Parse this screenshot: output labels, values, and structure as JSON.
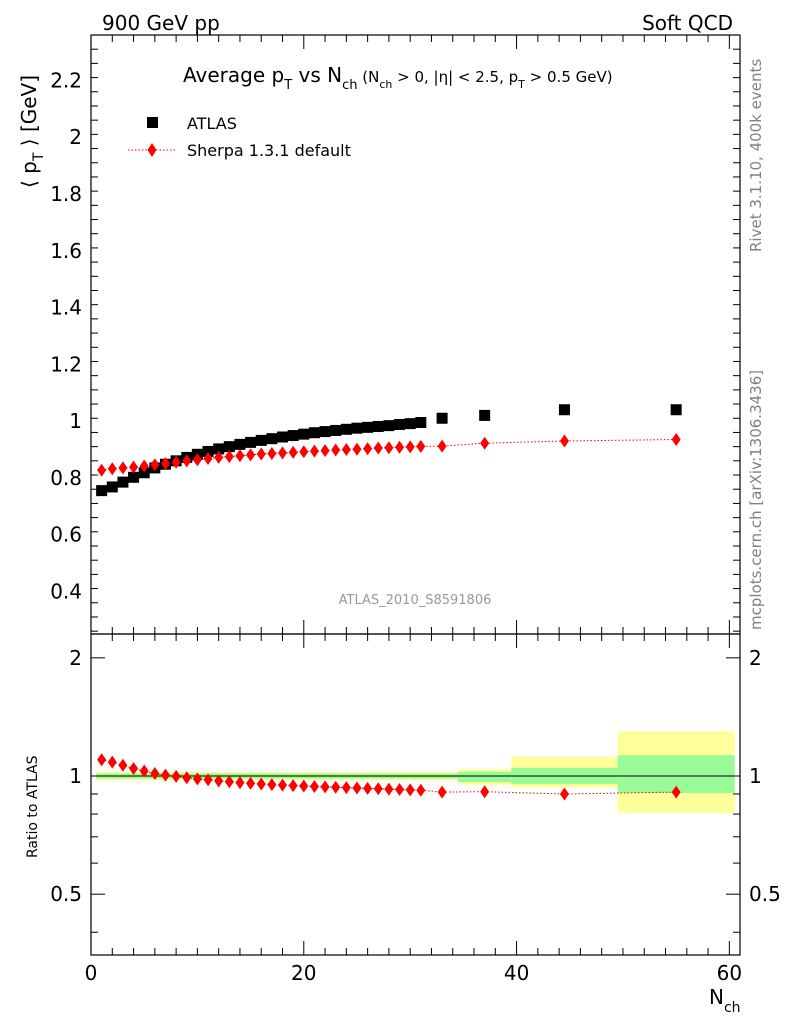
{
  "header": {
    "left": "900 GeV pp",
    "right": "Soft QCD"
  },
  "title": {
    "main_prefix": "Average p",
    "main_sub": "T",
    "main_mid": " vs N",
    "main_sub2": "ch",
    "cond_1": " (N",
    "cond_1_sub": "ch",
    "cond_2": " > 0, |η| < 2.5, p",
    "cond_2_sub": "T",
    "cond_3": " > 0.5 GeV)"
  },
  "side_text": {
    "rivet": "Rivet 3.1.10,  400k events",
    "mcplots": "mcplots.cern.ch [arXiv:1306.3436]"
  },
  "analysis_id": "ATLAS_2010_S8591806",
  "legend": {
    "atlas": "ATLAS",
    "sherpa": "Sherpa 1.3.1 default"
  },
  "axes": {
    "ylabel_main_pre": "⟨ p",
    "ylabel_main_sub": "T",
    "ylabel_main_post": " ⟩ [GeV]",
    "ylabel_ratio": "Ratio to ATLAS",
    "xlabel": "N",
    "xlabel_sub": "ch"
  },
  "colors": {
    "atlas": "#000000",
    "sherpa": "#ff0000",
    "band_inner": "#98fb98",
    "band_outer": "#ffff99",
    "side_text": "#808080"
  },
  "chart_data": {
    "type": "scatter",
    "main": {
      "xlim": [
        0,
        61
      ],
      "ylim": [
        0.25,
        2.36
      ],
      "yticks": [
        0.4,
        0.6,
        0.8,
        1,
        1.2,
        1.4,
        1.6,
        1.8,
        2,
        2.2
      ],
      "ytick_labels": [
        "0.4",
        "0.6",
        "0.8",
        "1",
        "1.2",
        "1.4",
        "1.6",
        "1.8",
        "2",
        "2.2"
      ]
    },
    "ratio": {
      "ylim": [
        0.35,
        2.3
      ],
      "log": true,
      "yticks": [
        0.5,
        1,
        2
      ],
      "ytick_labels": [
        "0.5",
        "1",
        "2"
      ]
    },
    "xticks": [
      0,
      20,
      40,
      60
    ],
    "xtick_labels": [
      "0",
      "20",
      "40",
      "60"
    ],
    "series": [
      {
        "name": "ATLAS",
        "marker": "square",
        "x": [
          1,
          2,
          3,
          4,
          5,
          6,
          7,
          8,
          9,
          10,
          11,
          12,
          13,
          14,
          15,
          16,
          17,
          18,
          19,
          20,
          21,
          22,
          23,
          24,
          25,
          26,
          27,
          28,
          29,
          30,
          31,
          33,
          37,
          44.5,
          55
        ],
        "y": [
          0.755,
          0.768,
          0.785,
          0.802,
          0.818,
          0.835,
          0.848,
          0.86,
          0.872,
          0.883,
          0.893,
          0.902,
          0.91,
          0.918,
          0.925,
          0.932,
          0.938,
          0.944,
          0.949,
          0.954,
          0.959,
          0.963,
          0.967,
          0.971,
          0.975,
          0.978,
          0.981,
          0.984,
          0.988,
          0.991,
          0.995,
          1.01,
          1.02,
          1.04,
          1.04
        ]
      },
      {
        "name": "Sherpa 1.3.1 default",
        "marker": "diamond",
        "x": [
          1,
          2,
          3,
          4,
          5,
          6,
          7,
          8,
          9,
          10,
          11,
          12,
          13,
          14,
          15,
          16,
          17,
          18,
          19,
          20,
          21,
          22,
          23,
          24,
          25,
          26,
          27,
          28,
          29,
          30,
          31,
          33,
          37,
          44.5,
          55
        ],
        "y": [
          0.827,
          0.832,
          0.835,
          0.838,
          0.842,
          0.846,
          0.85,
          0.855,
          0.86,
          0.864,
          0.868,
          0.872,
          0.875,
          0.878,
          0.881,
          0.884,
          0.886,
          0.888,
          0.89,
          0.892,
          0.894,
          0.896,
          0.898,
          0.9,
          0.901,
          0.903,
          0.905,
          0.906,
          0.908,
          0.909,
          0.911,
          0.912,
          0.922,
          0.93,
          0.935
        ]
      }
    ],
    "ratio_points": {
      "x": [
        1,
        2,
        3,
        4,
        5,
        6,
        7,
        8,
        9,
        10,
        11,
        12,
        13,
        14,
        15,
        16,
        17,
        18,
        19,
        20,
        21,
        22,
        23,
        24,
        25,
        26,
        27,
        28,
        29,
        30,
        31,
        33,
        37,
        44.5,
        55
      ],
      "y": [
        1.1,
        1.085,
        1.065,
        1.045,
        1.03,
        1.015,
        1.005,
        0.998,
        0.99,
        0.983,
        0.978,
        0.972,
        0.967,
        0.962,
        0.958,
        0.954,
        0.951,
        0.948,
        0.945,
        0.943,
        0.94,
        0.938,
        0.936,
        0.934,
        0.932,
        0.93,
        0.928,
        0.926,
        0.924,
        0.922,
        0.92,
        0.91,
        0.912,
        0.9,
        0.91
      ]
    },
    "bands": [
      {
        "x0": 0.5,
        "x1": 34.5,
        "inner": [
          0.985,
          1.015
        ],
        "outer": [
          0.975,
          1.025
        ]
      },
      {
        "x0": 34.5,
        "x1": 39.5,
        "inner": [
          0.965,
          1.025
        ],
        "outer": [
          0.95,
          1.04
        ]
      },
      {
        "x0": 39.5,
        "x1": 49.5,
        "inner": [
          0.955,
          1.05
        ],
        "outer": [
          0.935,
          1.12
        ]
      },
      {
        "x0": 49.5,
        "x1": 60.5,
        "inner": [
          0.905,
          1.13
        ],
        "outer": [
          0.805,
          1.3
        ]
      }
    ]
  }
}
